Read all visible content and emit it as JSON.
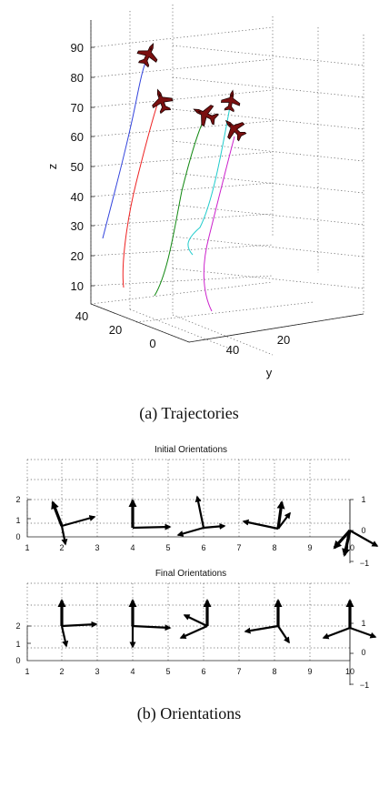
{
  "chart_data": [
    {
      "type": "line3d",
      "z_ticks": [
        "10",
        "20",
        "30",
        "40",
        "50",
        "60",
        "70",
        "80",
        "90"
      ],
      "x_ticks": [
        "40",
        "20",
        "0"
      ],
      "y_ticks": [
        "40",
        "20"
      ],
      "zlabel": "z",
      "ylabel": "y",
      "caption": "(a)  Trajectories",
      "series": [
        {
          "color": "#3344dd",
          "start": [
            -22,
            26
          ],
          "end": [
            0,
            92
          ]
        },
        {
          "color": "#ee2222",
          "start": [
            -13,
            8
          ],
          "end": [
            5,
            80
          ]
        },
        {
          "color": "#118811",
          "start": [
            4,
            5
          ],
          "end": [
            28,
            72
          ]
        },
        {
          "color": "#22cccc",
          "start": [
            8,
            20
          ],
          "end": [
            28,
            78
          ]
        },
        {
          "color": "#cc22cc",
          "start": [
            12,
            0
          ],
          "end": [
            38,
            72
          ]
        }
      ]
    },
    {
      "type": "quiver",
      "caption": "(b)  Orientations",
      "panels": [
        {
          "title": "Initial Orientations",
          "x_ticks": [
            "1",
            "2",
            "3",
            "4",
            "5",
            "6",
            "7",
            "8",
            "9",
            "10"
          ],
          "y_left_ticks": [
            "2",
            "1",
            "0"
          ],
          "y_right_ticks": [
            "1",
            "0",
            "−1"
          ]
        },
        {
          "title": "Final Orientations",
          "x_ticks": [
            "1",
            "2",
            "3",
            "4",
            "5",
            "6",
            "7",
            "8",
            "9",
            "10"
          ],
          "y_left_ticks": [
            "2",
            "1",
            "0"
          ],
          "y_right_ticks": [
            "1",
            "0",
            "−1"
          ]
        }
      ]
    }
  ]
}
